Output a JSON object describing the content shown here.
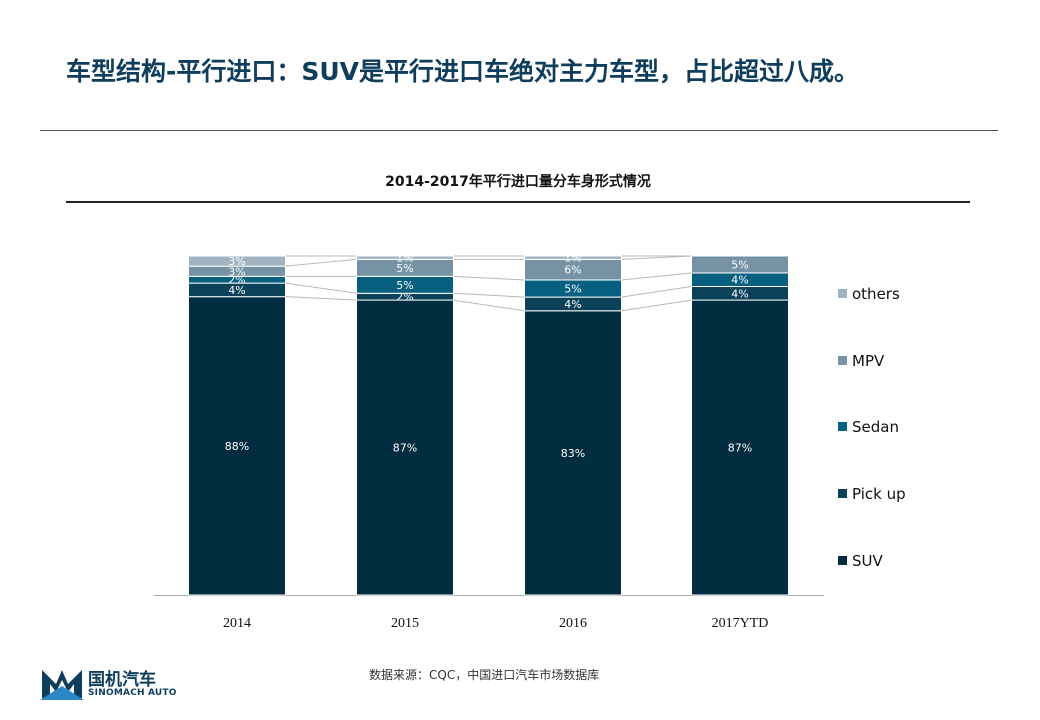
{
  "slide": {
    "title": "车型结构-平行进口：SUV是平行进口车绝对主力车型，占比超过八成。",
    "source": "数据来源：CQC，中国进口汽车市场数据库"
  },
  "logo": {
    "name_cn": "国机汽车",
    "name_en": "SINOMACH AUTO",
    "colors": {
      "dark": "#0f3d5c",
      "light": "#2a86c4"
    }
  },
  "chart_data": {
    "type": "bar",
    "stacked": true,
    "percent": true,
    "title": "2014-2017年平行进口量分车身形式情况",
    "categories": [
      "2014",
      "2015",
      "2016",
      "2017YTD"
    ],
    "ylim": [
      0,
      100
    ],
    "legend_position": "right",
    "series": [
      {
        "name": "SUV",
        "values": [
          88,
          87,
          83,
          87
        ],
        "labels": [
          "88%",
          "87%",
          "83%",
          "87%"
        ],
        "color": "#022c3f"
      },
      {
        "name": "Pick up",
        "values": [
          4,
          2,
          4,
          4
        ],
        "labels": [
          "4%",
          "2%",
          "4%",
          "4%"
        ],
        "color": "#0b4159"
      },
      {
        "name": "Sedan",
        "values": [
          2,
          5,
          5,
          4
        ],
        "labels": [
          "2%",
          "5%",
          "5%",
          "4%"
        ],
        "color": "#075f80"
      },
      {
        "name": "MPV",
        "values": [
          3,
          5,
          6,
          5
        ],
        "labels": [
          "3%",
          "5%",
          "6%",
          "5%"
        ],
        "color": "#7593a4"
      },
      {
        "name": "others",
        "values": [
          3,
          1,
          1,
          0
        ],
        "labels": [
          "3%",
          "1%",
          "1%",
          ""
        ],
        "color": "#a1b3c0"
      }
    ]
  }
}
